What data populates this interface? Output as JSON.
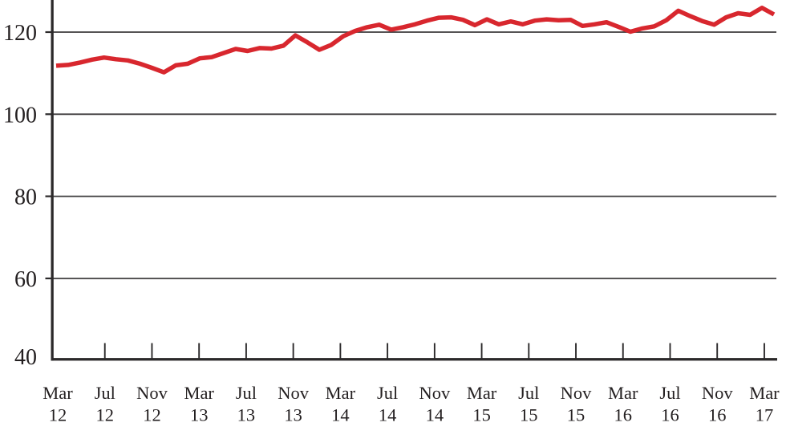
{
  "chart_data": {
    "type": "line",
    "title": "",
    "xlabel": "",
    "ylabel": "",
    "grid": "horizontal",
    "legend": "none",
    "ylim_visible": [
      40,
      127.8
    ],
    "y_tick_labels": [
      120,
      100,
      80,
      60,
      40
    ],
    "x_tick_labels": [
      "Mar 12",
      "Jul 12",
      "Nov 12",
      "Mar 13",
      "Jul 13",
      "Nov 13",
      "Mar 14",
      "Jul 14",
      "Nov 14",
      "Mar 15",
      "Jul 15",
      "Nov 15",
      "Mar 16",
      "Jul 16",
      "Nov 16",
      "Mar 17"
    ],
    "series": [
      {
        "name": "index-line",
        "color": "#d8272e",
        "x_months": [
          "Mar 2012",
          "Apr 2012",
          "May 2012",
          "Jun 2012",
          "Jul 2012",
          "Aug 2012",
          "Sep 2012",
          "Oct 2012",
          "Nov 2012",
          "Dec 2012",
          "Jan 2013",
          "Feb 2013",
          "Mar 2013",
          "Apr 2013",
          "May 2013",
          "Jun 2013",
          "Jul 2013",
          "Aug 2013",
          "Sep 2013",
          "Oct 2013",
          "Nov 2013",
          "Dec 2013",
          "Jan 2014",
          "Feb 2014",
          "Mar 2014",
          "Apr 2014",
          "May 2014",
          "Jun 2014",
          "Jul 2014",
          "Aug 2014",
          "Sep 2014",
          "Oct 2014",
          "Nov 2014",
          "Dec 2014",
          "Jan 2015",
          "Feb 2015",
          "Mar 2015",
          "Apr 2015",
          "May 2015",
          "Jun 2015",
          "Jul 2015",
          "Aug 2015",
          "Sep 2015",
          "Oct 2015",
          "Nov 2015",
          "Dec 2015",
          "Jan 2016",
          "Feb 2016",
          "Mar 2016",
          "Apr 2016",
          "May 2016",
          "Jun 2016",
          "Jul 2016",
          "Aug 2016",
          "Sep 2016",
          "Oct 2016",
          "Nov 2016",
          "Dec 2016",
          "Jan 2017",
          "Feb 2017",
          "Mar 2017"
        ],
        "values": [
          111.8,
          112.0,
          112.6,
          113.3,
          113.8,
          113.4,
          113.1,
          112.3,
          111.3,
          110.2,
          111.9,
          112.3,
          113.6,
          113.9,
          114.9,
          115.9,
          115.4,
          116.1,
          116.0,
          116.7,
          119.2,
          117.5,
          115.7,
          116.9,
          119.0,
          120.3,
          121.2,
          121.8,
          120.6,
          121.2,
          121.9,
          122.8,
          123.5,
          123.6,
          123.0,
          121.7,
          123.1,
          121.9,
          122.6,
          121.9,
          122.8,
          123.1,
          122.9,
          123.0,
          121.5,
          121.9,
          122.4,
          121.3,
          120.1,
          120.9,
          121.4,
          122.9,
          125.2,
          123.9,
          122.7,
          121.8,
          123.6,
          124.6,
          124.2,
          125.9,
          124.3
        ]
      }
    ]
  },
  "colors": {
    "line_red": "#d8272e",
    "axis": "#2b292a",
    "grid": "#3e3c3d",
    "text": "#231f20",
    "background": "#ffffff"
  }
}
